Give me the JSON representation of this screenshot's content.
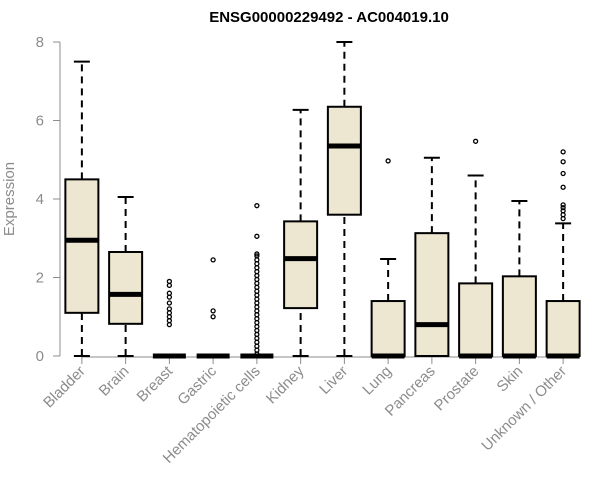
{
  "chart_data": {
    "type": "boxplot",
    "title": "ENSG00000229492 - AC004019.10",
    "xlabel": "",
    "ylabel": "Expression",
    "ylim": [
      0,
      8
    ],
    "yticks": [
      0,
      2,
      4,
      6,
      8
    ],
    "grid": false,
    "colors": {
      "box_fill": "#ede7d1",
      "stroke": "#000000",
      "axis_text": "#8c8c8c"
    },
    "categories": [
      "Bladder",
      "Brain",
      "Breast",
      "Gastric",
      "Hematopoietic cells",
      "Kidney",
      "Liver",
      "Lung",
      "Pancreas",
      "Prostate",
      "Skin",
      "Unknown / Other"
    ],
    "boxes": [
      {
        "category": "Bladder",
        "whisker_low": 0,
        "q1": 1.1,
        "median": 2.95,
        "q3": 4.5,
        "whisker_high": 7.5,
        "outliers": []
      },
      {
        "category": "Brain",
        "whisker_low": 0,
        "q1": 0.82,
        "median": 1.57,
        "q3": 2.65,
        "whisker_high": 4.05,
        "outliers": []
      },
      {
        "category": "Breast",
        "whisker_low": 0,
        "q1": 0,
        "median": 0,
        "q3": 0,
        "whisker_high": 0,
        "outliers": [
          0.8,
          0.9,
          1.0,
          1.1,
          1.2,
          1.35,
          1.5,
          1.6,
          1.8,
          1.9
        ]
      },
      {
        "category": "Gastric",
        "whisker_low": 0,
        "q1": 0,
        "median": 0,
        "q3": 0,
        "whisker_high": 0,
        "outliers": [
          1.0,
          1.15,
          2.45
        ]
      },
      {
        "category": "Hematopoietic cells",
        "whisker_low": 0,
        "q1": 0,
        "median": 0,
        "q3": 0,
        "whisker_high": 0,
        "outliers": [
          0.05,
          0.15,
          0.25,
          0.35,
          0.45,
          0.55,
          0.65,
          0.75,
          0.85,
          0.95,
          1.05,
          1.15,
          1.25,
          1.35,
          1.45,
          1.55,
          1.65,
          1.75,
          1.85,
          1.95,
          2.05,
          2.15,
          2.25,
          2.35,
          2.45,
          2.55,
          2.6,
          3.05,
          3.83
        ]
      },
      {
        "category": "Kidney",
        "whisker_low": 0,
        "q1": 1.22,
        "median": 2.48,
        "q3": 3.43,
        "whisker_high": 6.27,
        "outliers": []
      },
      {
        "category": "Liver",
        "whisker_low": 0,
        "q1": 3.6,
        "median": 5.35,
        "q3": 6.35,
        "whisker_high": 8.0,
        "outliers": []
      },
      {
        "category": "Lung",
        "whisker_low": 0,
        "q1": 0,
        "median": 0,
        "q3": 1.4,
        "whisker_high": 2.47,
        "outliers": [
          4.97
        ]
      },
      {
        "category": "Pancreas",
        "whisker_low": 0,
        "q1": 0,
        "median": 0.8,
        "q3": 3.13,
        "whisker_high": 5.05,
        "outliers": []
      },
      {
        "category": "Prostate",
        "whisker_low": 0,
        "q1": 0,
        "median": 0,
        "q3": 1.85,
        "whisker_high": 4.6,
        "outliers": [
          5.47
        ]
      },
      {
        "category": "Skin",
        "whisker_low": 0,
        "q1": 0,
        "median": 0,
        "q3": 2.03,
        "whisker_high": 3.95,
        "outliers": []
      },
      {
        "category": "Unknown / Other",
        "whisker_low": 0,
        "q1": 0,
        "median": 0,
        "q3": 1.4,
        "whisker_high": 3.38,
        "outliers": [
          3.5,
          3.6,
          3.7,
          3.78,
          3.85,
          4.3,
          4.65,
          4.95,
          5.2
        ]
      }
    ]
  }
}
